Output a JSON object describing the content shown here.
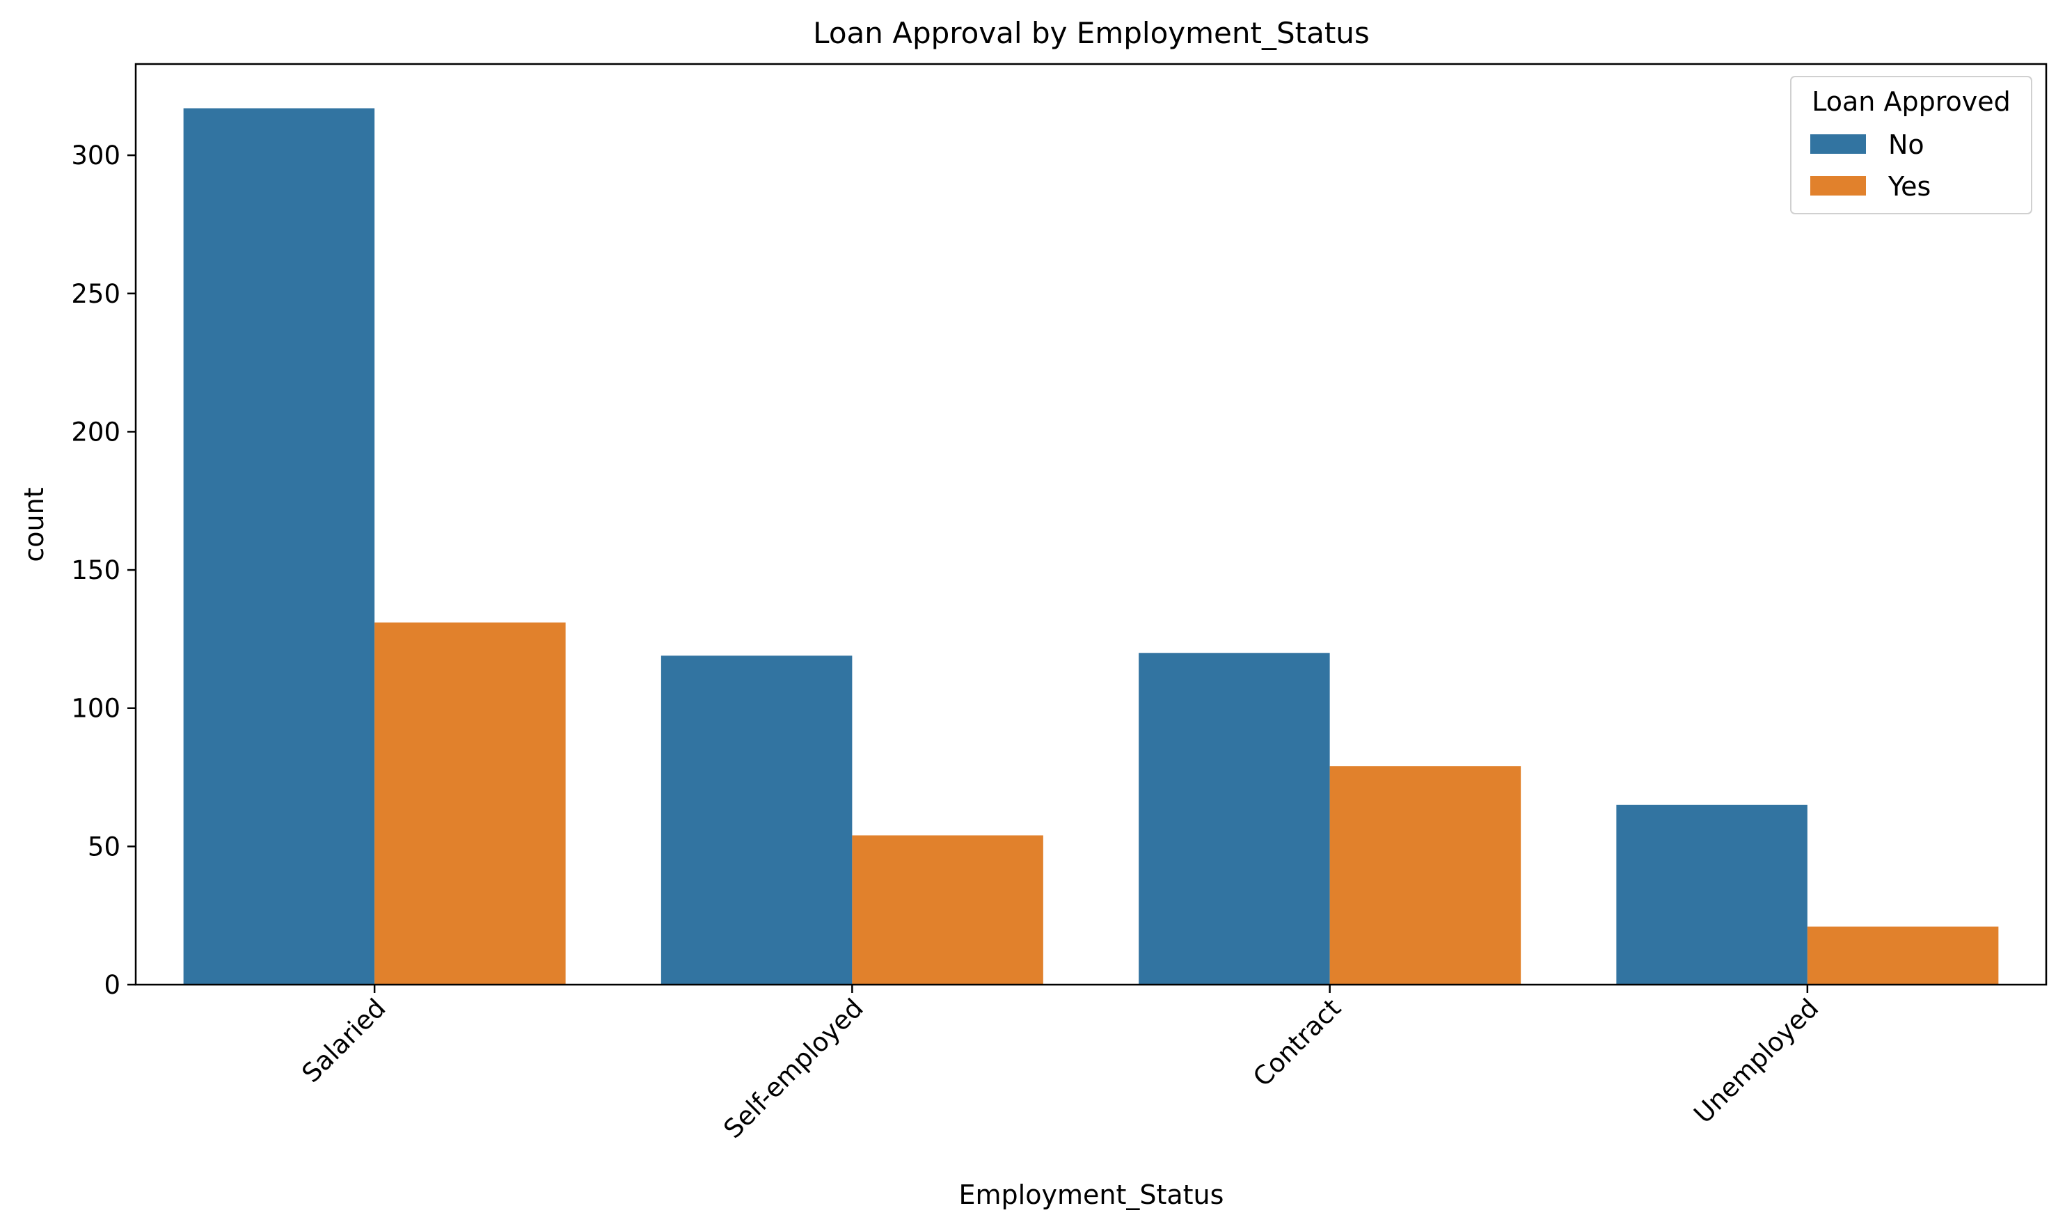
{
  "chart_data": {
    "type": "bar",
    "title": "Loan Approval by Employment_Status",
    "xlabel": "Employment_Status",
    "ylabel": "count",
    "categories": [
      "Salaried",
      "Self-employed",
      "Contract",
      "Unemployed"
    ],
    "series": [
      {
        "name": "No",
        "color": "#3274a1",
        "values": [
          317,
          119,
          120,
          65
        ]
      },
      {
        "name": "Yes",
        "color": "#e1812c",
        "values": [
          131,
          54,
          79,
          21
        ]
      }
    ],
    "ylim": [
      0,
      333
    ],
    "yticks": [
      0,
      50,
      100,
      150,
      200,
      250,
      300
    ],
    "grid": false,
    "legend": {
      "title": "Loan Approved",
      "position": "top-right"
    }
  }
}
